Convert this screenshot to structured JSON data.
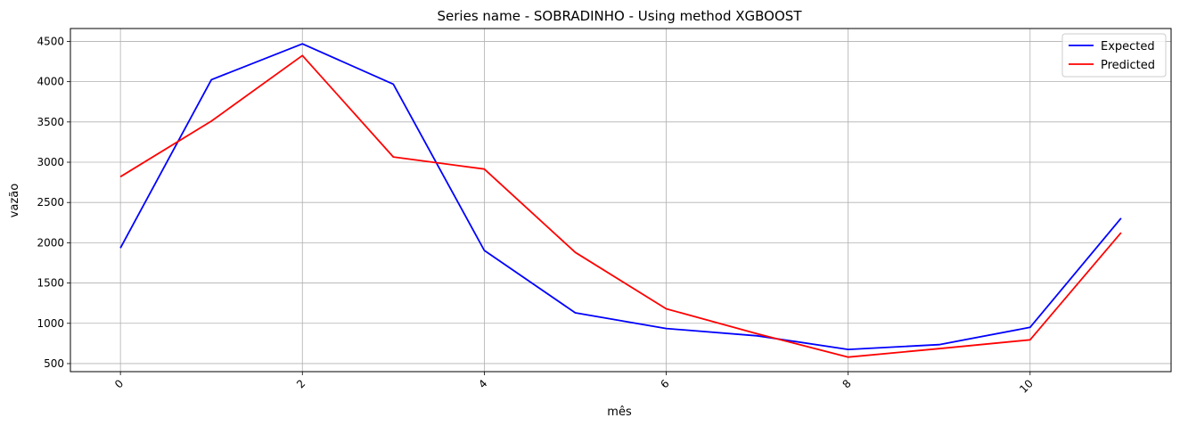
{
  "chart_data": {
    "type": "line",
    "title": "Series name - SOBRADINHO - Using method XGBOOST",
    "xlabel": "mês",
    "ylabel": "vazão",
    "x": [
      0,
      1,
      2,
      3,
      4,
      5,
      6,
      7,
      8,
      9,
      10,
      11
    ],
    "xlim": [
      -0.55,
      11.55
    ],
    "ylim": [
      400,
      4660
    ],
    "xticks": [
      0,
      2,
      4,
      6,
      8,
      10
    ],
    "yticks": [
      500,
      1000,
      1500,
      2000,
      2500,
      3000,
      3500,
      4000,
      4500
    ],
    "xtick_rotation": 45,
    "grid": true,
    "legend_placement": "top-right",
    "series": [
      {
        "name": "Expected",
        "color": "#0000ff",
        "values": [
          1935,
          4025,
          4470,
          3970,
          1905,
          1130,
          935,
          845,
          675,
          735,
          950,
          2305
        ]
      },
      {
        "name": "Predicted",
        "color": "#ff0000",
        "values": [
          2820,
          3510,
          4325,
          3065,
          2915,
          1880,
          1180,
          870,
          580,
          685,
          795,
          2125
        ]
      }
    ]
  }
}
